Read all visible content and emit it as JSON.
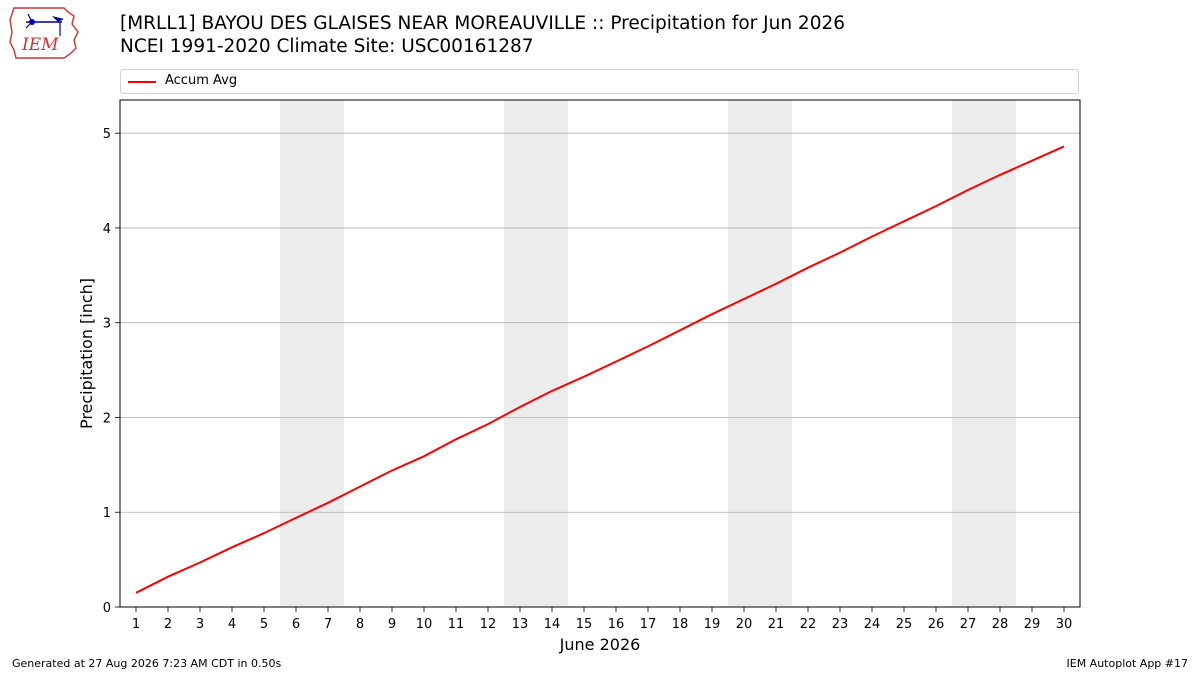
{
  "header": {
    "title_line1": "[MRLL1] BAYOU DES GLAISES NEAR MOREAUVILLE :: Precipitation for Jun 2026",
    "title_line2": "NCEI 1991-2020 Climate Site: USC00161287"
  },
  "logo": {
    "text": "IEM",
    "colors": {
      "outline": "#cc3333",
      "mark": "#0000aa"
    }
  },
  "legend": {
    "entries": [
      {
        "label": "Accum Avg",
        "color": "#ff0000"
      }
    ],
    "placement": "top"
  },
  "footer": {
    "generated": "Generated at 27 Aug 2026 7:23 AM CDT in 0.50s",
    "app": "IEM Autoplot App #17"
  },
  "chart_data": {
    "type": "line",
    "xlabel": "June 2026",
    "ylabel": "Precipitation [inch]",
    "xlim": [
      0.5,
      30.5
    ],
    "ylim": [
      0,
      5.35
    ],
    "yticks": [
      0,
      1,
      2,
      3,
      4,
      5
    ],
    "x": [
      1,
      2,
      3,
      4,
      5,
      6,
      7,
      8,
      9,
      10,
      11,
      12,
      13,
      14,
      15,
      16,
      17,
      18,
      19,
      20,
      21,
      22,
      23,
      24,
      25,
      26,
      27,
      28,
      29,
      30
    ],
    "series": [
      {
        "name": "Accum Avg",
        "color": "#ff0000",
        "values": [
          0.15,
          0.32,
          0.47,
          0.63,
          0.78,
          0.94,
          1.1,
          1.27,
          1.44,
          1.59,
          1.77,
          1.93,
          2.11,
          2.28,
          2.43,
          2.59,
          2.75,
          2.92,
          3.09,
          3.25,
          3.41,
          3.58,
          3.74,
          3.91,
          4.07,
          4.23,
          4.4,
          4.56,
          4.71,
          4.86
        ]
      }
    ],
    "weekend_shading": [
      [
        5.5,
        7.5
      ],
      [
        12.5,
        14.5
      ],
      [
        19.5,
        21.5
      ],
      [
        26.5,
        28.5
      ]
    ],
    "shading_color": "#ececec",
    "grid": "y",
    "grid_color": "#b0b0b0"
  }
}
